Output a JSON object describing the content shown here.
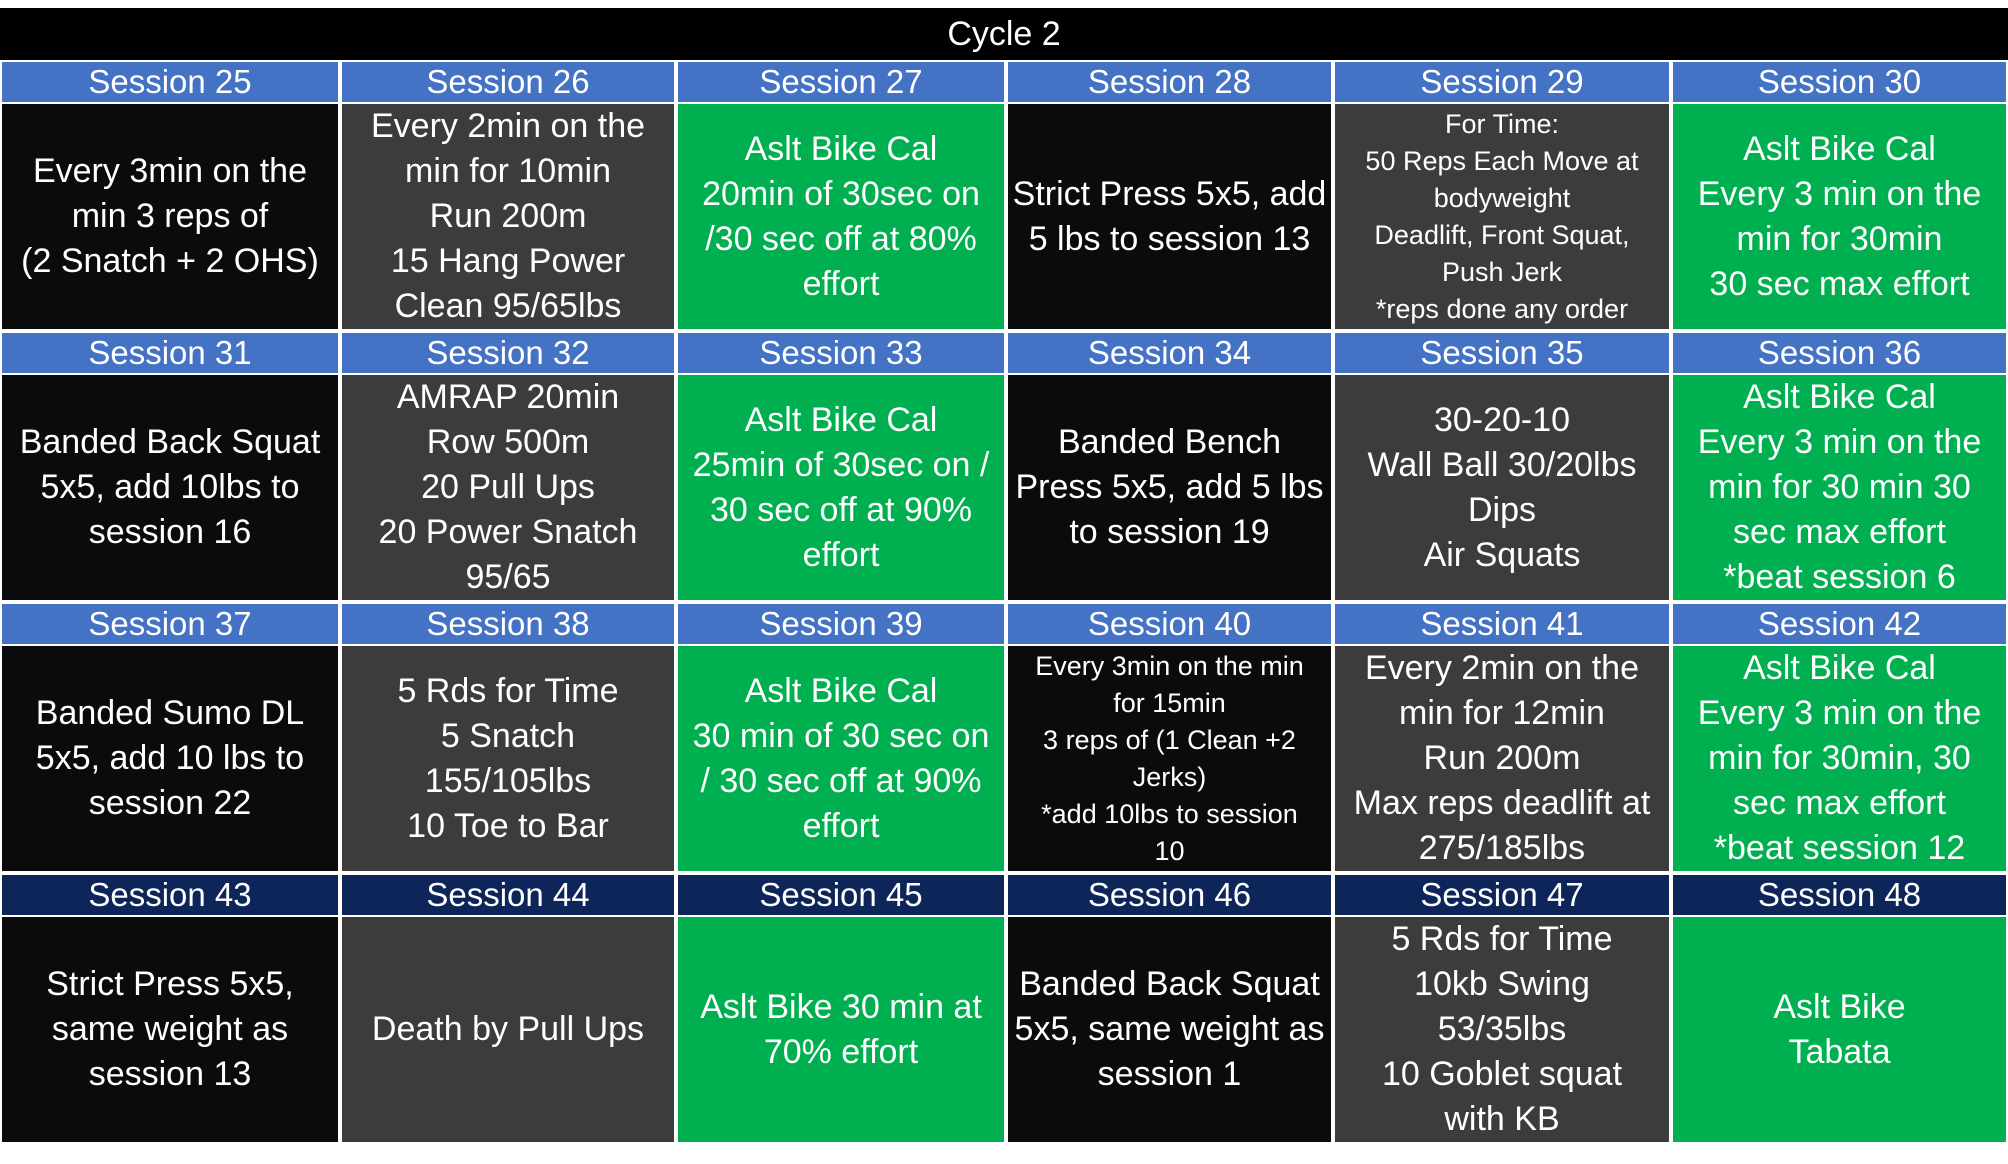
{
  "title": "Cycle 2",
  "colors": {
    "black": "#0b0b0b",
    "gray": "#3c3c3c",
    "green": "#00b050",
    "header_blue": "#4472c4",
    "header_navy": "#0e2559"
  },
  "sessions": [
    {
      "label": "Session 25",
      "bg": "black",
      "header": "blue",
      "small": false,
      "lines": [
        "Every 3min on the",
        "min 3 reps of",
        "(2 Snatch + 2 OHS)"
      ]
    },
    {
      "label": "Session 26",
      "bg": "gray",
      "header": "blue",
      "small": false,
      "lines": [
        "Every 2min on the",
        "min for 10min",
        "Run 200m",
        "15 Hang Power",
        "Clean 95/65lbs"
      ]
    },
    {
      "label": "Session 27",
      "bg": "green",
      "header": "blue",
      "small": false,
      "lines": [
        "Aslt Bike Cal",
        "20min of 30sec on",
        "/30 sec off at 80%",
        "effort"
      ]
    },
    {
      "label": "Session 28",
      "bg": "black",
      "header": "blue",
      "small": false,
      "lines": [
        "Strict Press 5x5, add",
        "5 lbs to session 13"
      ]
    },
    {
      "label": "Session 29",
      "bg": "gray",
      "header": "blue",
      "small": true,
      "lines": [
        "For Time:",
        "50 Reps Each Move at",
        "bodyweight",
        "Deadlift, Front Squat,",
        "Push Jerk",
        "*reps done any order"
      ]
    },
    {
      "label": "Session 30",
      "bg": "green",
      "header": "blue",
      "small": false,
      "lines": [
        "Aslt Bike Cal",
        "Every 3 min on the",
        "min for 30min",
        "30 sec max effort"
      ]
    },
    {
      "label": "Session 31",
      "bg": "black",
      "header": "blue",
      "small": false,
      "lines": [
        "Banded Back Squat",
        "5x5, add 10lbs to",
        "session 16"
      ]
    },
    {
      "label": "Session 32",
      "bg": "gray",
      "header": "blue",
      "small": false,
      "lines": [
        "AMRAP 20min",
        "Row 500m",
        "20 Pull Ups",
        "20 Power Snatch",
        "95/65"
      ]
    },
    {
      "label": "Session 33",
      "bg": "green",
      "header": "blue",
      "small": false,
      "lines": [
        "Aslt Bike Cal",
        "25min of 30sec on /",
        "30 sec off at 90%",
        "effort"
      ]
    },
    {
      "label": "Session 34",
      "bg": "black",
      "header": "blue",
      "small": false,
      "lines": [
        "Banded Bench",
        "Press 5x5, add 5 lbs",
        "to session 19"
      ]
    },
    {
      "label": "Session 35",
      "bg": "gray",
      "header": "blue",
      "small": false,
      "lines": [
        "30-20-10",
        "Wall Ball 30/20lbs",
        "Dips",
        "Air Squats"
      ]
    },
    {
      "label": "Session 36",
      "bg": "green",
      "header": "blue",
      "small": false,
      "lines": [
        "Aslt Bike Cal",
        "Every 3 min on the",
        "min for 30 min 30",
        "sec max effort",
        "*beat session 6"
      ]
    },
    {
      "label": "Session 37",
      "bg": "black",
      "header": "blue",
      "small": false,
      "lines": [
        "Banded Sumo DL",
        "5x5, add 10 lbs to",
        "session 22"
      ]
    },
    {
      "label": "Session 38",
      "bg": "gray",
      "header": "blue",
      "small": false,
      "lines": [
        "5 Rds for Time",
        "5 Snatch",
        "155/105lbs",
        "10 Toe to Bar"
      ]
    },
    {
      "label": "Session 39",
      "bg": "green",
      "header": "blue",
      "small": false,
      "lines": [
        "Aslt Bike Cal",
        "30 min of 30 sec on",
        "/ 30 sec off at 90%",
        "effort"
      ]
    },
    {
      "label": "Session 40",
      "bg": "black",
      "header": "blue",
      "small": true,
      "lines": [
        "Every 3min on the min",
        "for 15min",
        "3 reps of (1 Clean +2",
        "Jerks)",
        "*add 10lbs to session",
        "10"
      ]
    },
    {
      "label": "Session 41",
      "bg": "gray",
      "header": "blue",
      "small": false,
      "lines": [
        "Every 2min on the",
        "min for 12min",
        "Run 200m",
        "Max reps deadlift at",
        "275/185lbs"
      ]
    },
    {
      "label": "Session 42",
      "bg": "green",
      "header": "blue",
      "small": false,
      "lines": [
        "Aslt Bike Cal",
        "Every 3 min on the",
        "min for 30min, 30",
        "sec max effort",
        "*beat session 12"
      ]
    },
    {
      "label": "Session 43",
      "bg": "black",
      "header": "navy",
      "small": false,
      "lines": [
        "Strict Press 5x5,",
        "same weight as",
        "session 13"
      ]
    },
    {
      "label": "Session 44",
      "bg": "gray",
      "header": "navy",
      "small": false,
      "lines": [
        "Death by Pull Ups"
      ]
    },
    {
      "label": "Session 45",
      "bg": "green",
      "header": "navy",
      "small": false,
      "lines": [
        "Aslt Bike 30 min at",
        "70% effort"
      ]
    },
    {
      "label": "Session 46",
      "bg": "black",
      "header": "navy",
      "small": false,
      "lines": [
        "Banded Back Squat",
        "5x5, same weight as",
        "session 1"
      ]
    },
    {
      "label": "Session 47",
      "bg": "gray",
      "header": "navy",
      "small": false,
      "lines": [
        "5 Rds for Time",
        "10kb Swing",
        "53/35lbs",
        "10 Goblet squat",
        "with KB"
      ]
    },
    {
      "label": "Session 48",
      "bg": "green",
      "header": "navy",
      "small": false,
      "lines": [
        "Aslt Bike",
        "Tabata"
      ]
    }
  ]
}
